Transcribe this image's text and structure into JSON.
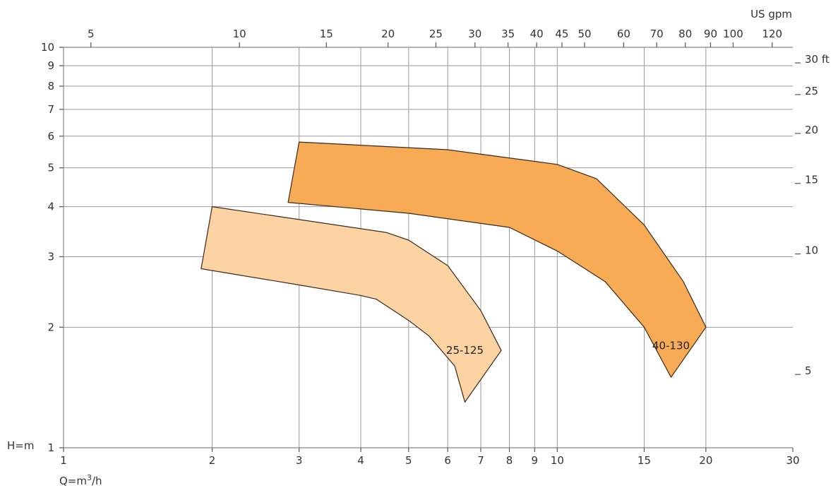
{
  "chart_data": {
    "type": "area",
    "scale": "log-log",
    "x_axis": {
      "label": "Q=m3/h",
      "label_main": "Q=m",
      "label_sup": "3",
      "label_tail": "/h",
      "range": [
        1,
        30
      ],
      "ticks": [
        1,
        2,
        3,
        4,
        5,
        6,
        7,
        8,
        9,
        10,
        15,
        20,
        30
      ],
      "tick_labels": [
        "1",
        "2",
        "3",
        "4",
        "5",
        "6",
        "7",
        "8",
        "9",
        "10",
        "15",
        "20",
        "30"
      ]
    },
    "y_axis": {
      "label": "H=m",
      "range": [
        1,
        10
      ],
      "ticks": [
        1,
        2,
        3,
        4,
        5,
        6,
        7,
        8,
        9,
        10
      ],
      "tick_labels": [
        "1",
        "2",
        "3",
        "4",
        "5",
        "6",
        "7",
        "8",
        "9",
        "10"
      ]
    },
    "x2_axis": {
      "label": "US gpm",
      "tick_labels": [
        "5",
        "10",
        "15",
        "20",
        "25",
        "30",
        "35",
        "40",
        "45",
        "50",
        "60",
        "70",
        "80",
        "90",
        "100",
        "120"
      ],
      "ticks_m3h": [
        1.136,
        2.271,
        3.407,
        4.543,
        5.678,
        6.814,
        7.949,
        9.085,
        10.22,
        11.36,
        13.63,
        15.9,
        18.17,
        20.44,
        22.71,
        27.25
      ]
    },
    "y2_axis": {
      "unit": "ft",
      "tick_labels": [
        "5",
        "10",
        "15",
        "20",
        "25",
        "30 ft"
      ],
      "ticks_ft": [
        5,
        10,
        15,
        20,
        25,
        30
      ]
    },
    "grid": true,
    "series": [
      {
        "name": "25-125",
        "color": "#fdd3a3",
        "outline": [
          [
            2.0,
            4.0
          ],
          [
            4.5,
            3.45
          ],
          [
            5.0,
            3.3
          ],
          [
            6.0,
            2.85
          ],
          [
            7.0,
            2.2
          ],
          [
            7.7,
            1.75
          ],
          [
            6.5,
            1.3
          ],
          [
            6.2,
            1.6
          ],
          [
            5.5,
            1.9
          ],
          [
            5.0,
            2.08
          ],
          [
            4.3,
            2.35
          ],
          [
            4.0,
            2.4
          ],
          [
            3.0,
            2.55
          ],
          [
            1.9,
            2.8
          ]
        ]
      },
      {
        "name": "40-130",
        "color": "#f8ab55",
        "outline": [
          [
            3.0,
            5.8
          ],
          [
            6.0,
            5.55
          ],
          [
            10.0,
            5.1
          ],
          [
            12.0,
            4.7
          ],
          [
            15.0,
            3.6
          ],
          [
            18.0,
            2.6
          ],
          [
            20.0,
            2.0
          ],
          [
            17.0,
            1.5
          ],
          [
            15.0,
            2.0
          ],
          [
            12.5,
            2.6
          ],
          [
            10.0,
            3.1
          ],
          [
            8.0,
            3.55
          ],
          [
            5.0,
            3.85
          ],
          [
            2.85,
            4.1
          ]
        ]
      }
    ]
  }
}
